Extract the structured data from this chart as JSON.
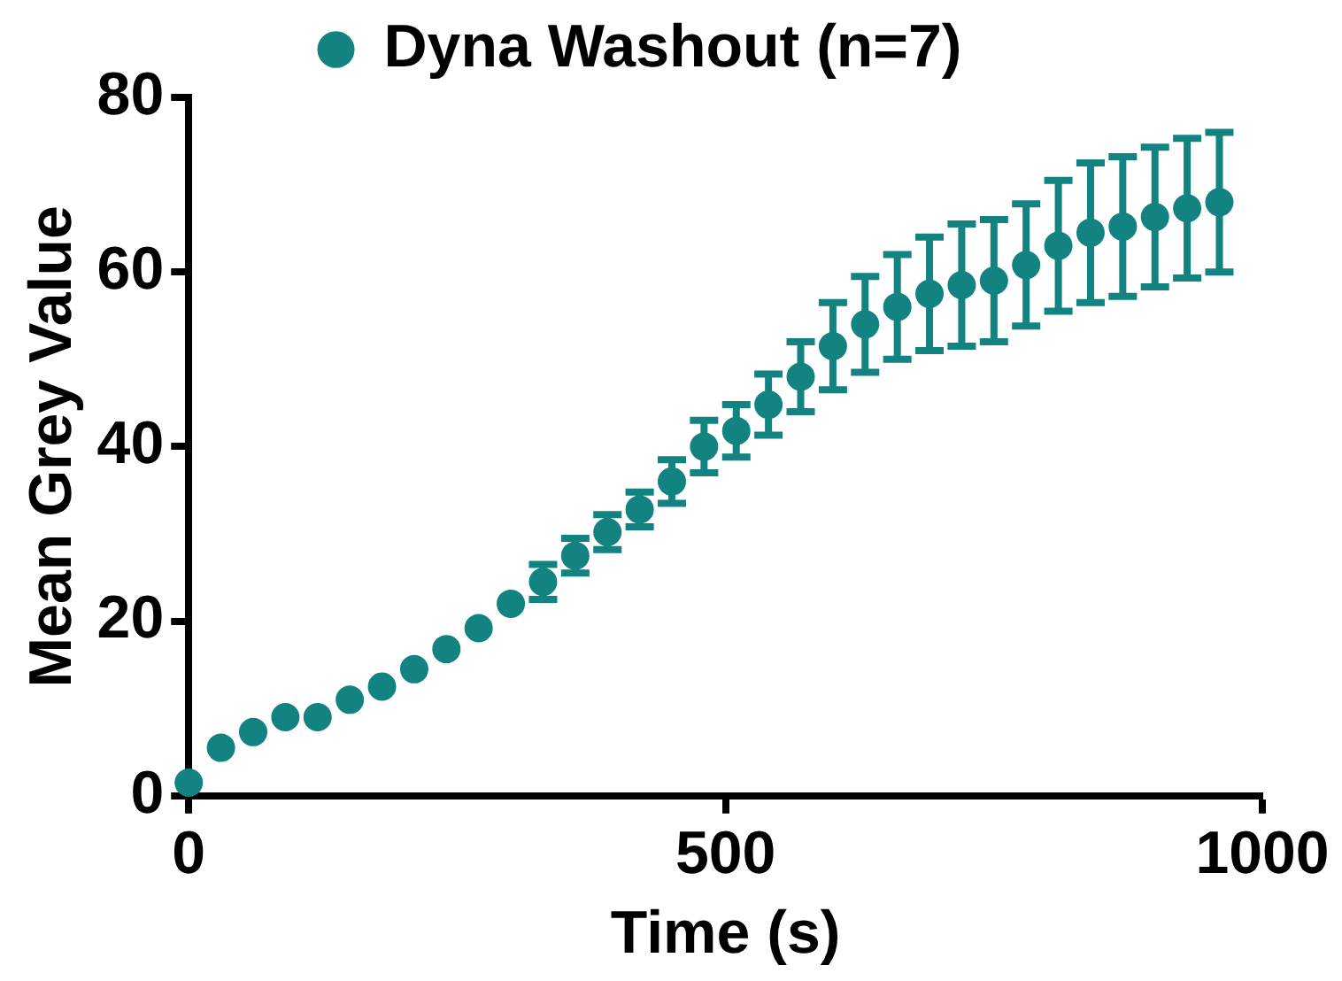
{
  "chart_data": {
    "type": "scatter",
    "xlabel": "Time (s)",
    "ylabel": "Mean Grey Value",
    "x": [
      0,
      30,
      60,
      90,
      120,
      150,
      180,
      210,
      240,
      270,
      300,
      330,
      360,
      390,
      420,
      450,
      480,
      510,
      540,
      570,
      600,
      630,
      660,
      690,
      720,
      750,
      780,
      810,
      840,
      870,
      900,
      930,
      960
    ],
    "series": [
      {
        "name": "Dyna Washout (n=7)",
        "color": "#128380",
        "values": [
          1.5,
          5.5,
          7.3,
          9,
          9,
          11,
          12.5,
          14.5,
          16.8,
          19.2,
          22,
          24.5,
          27.5,
          30.2,
          32.8,
          36,
          40,
          41.8,
          44.8,
          48,
          51.5,
          54,
          56,
          57.5,
          58.5,
          59,
          60.8,
          63,
          64.5,
          65.2,
          66.3,
          67.3,
          68
        ],
        "errors": [
          null,
          null,
          null,
          null,
          null,
          null,
          null,
          null,
          null,
          null,
          null,
          2,
          2,
          2,
          2,
          2.5,
          3,
          3,
          3.5,
          4,
          5,
          5.5,
          6,
          6.5,
          7,
          7,
          7,
          7.5,
          8,
          8,
          8,
          8,
          8
        ]
      }
    ],
    "xlim": [
      0,
      1000
    ],
    "xticks": [
      0,
      500,
      1000
    ],
    "ylim": [
      0,
      80
    ],
    "yticks": [
      0,
      20,
      40,
      60,
      80
    ],
    "grid": false,
    "legend": "top",
    "marker": "circle"
  }
}
